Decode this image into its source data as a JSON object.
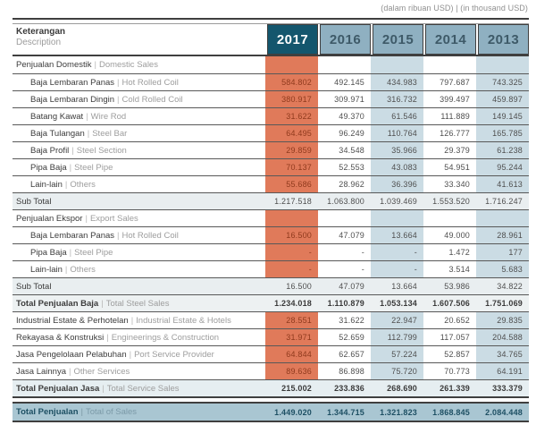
{
  "caption": "(dalam ribuan USD) | (in thousand USD)",
  "header": {
    "keterangan": "Keterangan",
    "description": "Description",
    "years": [
      "2017",
      "2016",
      "2015",
      "2014",
      "2013"
    ]
  },
  "colors": {
    "year_active_bg": "#14566d",
    "year_bg": "#8fb0c1",
    "band_2017": "#e07a5a",
    "band_blue": "#cbdce4",
    "band_text": "#8f3a1d",
    "subtotal_bg": "#e9eef0",
    "total_bg": "#edf1f2",
    "service_total_bg": "#e6eef1",
    "grand_total_bg": "#a9c6d2"
  },
  "table": {
    "rows": [
      {
        "type": "section",
        "indent": false,
        "banded": true,
        "label_id": "Penjualan Domestik",
        "label_en": "Domestic Sales",
        "values": [
          "",
          "",
          "",
          "",
          ""
        ]
      },
      {
        "type": "item",
        "indent": true,
        "banded": true,
        "label_id": "Baja Lembaran Panas",
        "label_en": "Hot Rolled Coil",
        "values": [
          "584.802",
          "492.145",
          "434.983",
          "797.687",
          "743.325"
        ]
      },
      {
        "type": "item",
        "indent": true,
        "banded": true,
        "label_id": "Baja Lembaran Dingin",
        "label_en": "Cold Rolled Coil",
        "values": [
          "380.917",
          "309.971",
          "316.732",
          "399.497",
          "459.897"
        ]
      },
      {
        "type": "item",
        "indent": true,
        "banded": true,
        "label_id": "Batang Kawat",
        "label_en": "Wire Rod",
        "values": [
          "31.622",
          "49.370",
          "61.546",
          "111.889",
          "149.145"
        ]
      },
      {
        "type": "item",
        "indent": true,
        "banded": true,
        "label_id": "Baja Tulangan",
        "label_en": "Steel Bar",
        "values": [
          "64.495",
          "96.249",
          "110.764",
          "126.777",
          "165.785"
        ]
      },
      {
        "type": "item",
        "indent": true,
        "banded": true,
        "label_id": "Baja Profil",
        "label_en": "Steel Section",
        "values": [
          "29.859",
          "34.548",
          "35.966",
          "29.379",
          "61.238"
        ]
      },
      {
        "type": "item",
        "indent": true,
        "banded": true,
        "label_id": "Pipa Baja",
        "label_en": "Steel Pipe",
        "values": [
          "70.137",
          "52.553",
          "43.083",
          "54.951",
          "95.244"
        ]
      },
      {
        "type": "item",
        "indent": true,
        "banded": true,
        "label_id": "Lain-lain",
        "label_en": "Others",
        "values": [
          "55.686",
          "28.962",
          "36.396",
          "33.340",
          "41.613"
        ]
      },
      {
        "type": "subtotal",
        "indent": false,
        "banded": false,
        "label_id": "Sub Total",
        "label_en": "",
        "values": [
          "1.217.518",
          "1.063.800",
          "1.039.469",
          "1.553.520",
          "1.716.247"
        ]
      },
      {
        "type": "section",
        "indent": false,
        "banded": true,
        "label_id": "Penjualan Ekspor",
        "label_en": "Export Sales",
        "values": [
          "",
          "",
          "",
          "",
          ""
        ]
      },
      {
        "type": "item",
        "indent": true,
        "banded": true,
        "label_id": "Baja Lembaran Panas",
        "label_en": "Hot Rolled Coil",
        "values": [
          "16.500",
          "47.079",
          "13.664",
          "49.000",
          "28.961"
        ]
      },
      {
        "type": "item",
        "indent": true,
        "banded": true,
        "label_id": "Pipa Baja",
        "label_en": "Steel Pipe",
        "values": [
          "-",
          "-",
          "-",
          "1.472",
          "177"
        ]
      },
      {
        "type": "item",
        "indent": true,
        "banded": true,
        "label_id": "Lain-lain",
        "label_en": "Others",
        "values": [
          "-",
          "-",
          "-",
          "3.514",
          "5.683"
        ]
      },
      {
        "type": "subtotal",
        "indent": false,
        "banded": false,
        "label_id": "Sub Total",
        "label_en": "",
        "values": [
          "16.500",
          "47.079",
          "13.664",
          "53.986",
          "34.822"
        ]
      },
      {
        "type": "total",
        "indent": false,
        "banded": false,
        "label_id": "Total Penjualan Baja",
        "label_en": "Total Steel Sales",
        "values": [
          "1.234.018",
          "1.110.879",
          "1.053.134",
          "1.607.506",
          "1.751.069"
        ]
      },
      {
        "type": "item",
        "indent": false,
        "banded": true,
        "label_id": "Industrial Estate & Perhotelan",
        "label_en": "Industrial Estate & Hotels",
        "values": [
          "28.551",
          "31.622",
          "22.947",
          "20.652",
          "29.835"
        ]
      },
      {
        "type": "item",
        "indent": false,
        "banded": true,
        "label_id": "Rekayasa & Konstruksi",
        "label_en": "Engineerings & Construction",
        "values": [
          "31.971",
          "52.659",
          "112.799",
          "117.057",
          "204.588"
        ]
      },
      {
        "type": "item",
        "indent": false,
        "banded": true,
        "label_id": "Jasa Pengelolaan Pelabuhan",
        "label_en": "Port Service Provider",
        "values": [
          "64.844",
          "62.657",
          "57.224",
          "52.857",
          "34.765"
        ]
      },
      {
        "type": "item",
        "indent": false,
        "banded": true,
        "label_id": "Jasa Lainnya",
        "label_en": "Other Services",
        "values": [
          "89.636",
          "86.898",
          "75.720",
          "70.773",
          "64.191"
        ]
      },
      {
        "type": "service_total",
        "indent": false,
        "banded": false,
        "label_id": "Total Penjualan Jasa",
        "label_en": "Total Service Sales",
        "values": [
          "215.002",
          "233.836",
          "268.690",
          "261.339",
          "333.379"
        ]
      },
      {
        "type": "spacer"
      },
      {
        "type": "grandtotal",
        "indent": false,
        "banded": false,
        "label_id": "Total Penjualan",
        "label_en": "Total of Sales",
        "values": [
          "1.449.020",
          "1.344.715",
          "1.321.823",
          "1.868.845",
          "2.084.448"
        ]
      }
    ]
  }
}
